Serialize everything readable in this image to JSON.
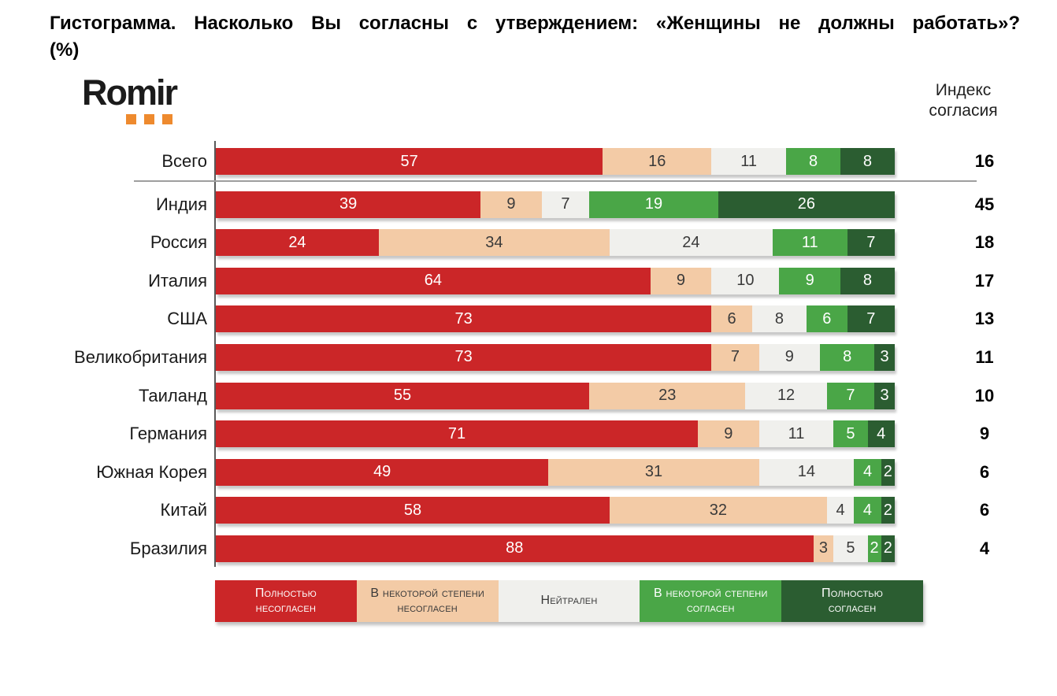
{
  "page": {
    "title_lines": [
      "Гистограмма. Насколько Вы согласны с утверждением: «Женщины не должны работать»?",
      "(%)"
    ],
    "logo_text": "Romir",
    "logo_accent_color": "#ee8a2e",
    "index_header_lines": [
      "Индекс",
      "согласия"
    ]
  },
  "chart_data": {
    "type": "bar",
    "orientation": "horizontal",
    "stacked": true,
    "unit": "%",
    "xlim": [
      0,
      100
    ],
    "grid": false,
    "legend_position": "bottom",
    "categories": [
      "Всего",
      "Индия",
      "Россия",
      "Италия",
      "США",
      "Великобритания",
      "Таиланд",
      "Германия",
      "Южная Корея",
      "Китай",
      "Бразилия"
    ],
    "series": [
      {
        "name": "Полностью несогласен",
        "color": "#cb2628",
        "text_color": "#ffffff",
        "values": [
          57,
          39,
          24,
          64,
          73,
          73,
          55,
          71,
          49,
          58,
          88
        ]
      },
      {
        "name": "В некоторой степени несогласен",
        "color": "#f3cba6",
        "text_color": "#3a3a3a",
        "values": [
          16,
          9,
          34,
          9,
          6,
          7,
          23,
          9,
          31,
          32,
          3
        ]
      },
      {
        "name": "Нейтрален",
        "color": "#f0f0ed",
        "text_color": "#3a3a3a",
        "values": [
          11,
          7,
          24,
          10,
          8,
          9,
          12,
          11,
          14,
          4,
          5
        ]
      },
      {
        "name": "В некоторой степени согласен",
        "color": "#4aa647",
        "text_color": "#ffffff",
        "values": [
          8,
          19,
          11,
          9,
          6,
          8,
          7,
          5,
          4,
          4,
          2
        ]
      },
      {
        "name": "Полностью согласен",
        "color": "#2b5d31",
        "text_color": "#ffffff",
        "values": [
          8,
          26,
          7,
          8,
          7,
          3,
          3,
          4,
          2,
          2,
          2
        ]
      }
    ],
    "agreement_index": [
      16,
      45,
      18,
      17,
      13,
      11,
      10,
      9,
      6,
      6,
      4
    ],
    "legend": {
      "items": [
        {
          "lines": [
            "Полностью",
            "несогласен"
          ]
        },
        {
          "lines": [
            "В некоторой степени",
            "несогласен"
          ]
        },
        {
          "lines": [
            "Нейтрален"
          ]
        },
        {
          "lines": [
            "В некоторой степени",
            "согласен"
          ]
        },
        {
          "lines": [
            "Полностью",
            "согласен"
          ]
        }
      ]
    }
  }
}
